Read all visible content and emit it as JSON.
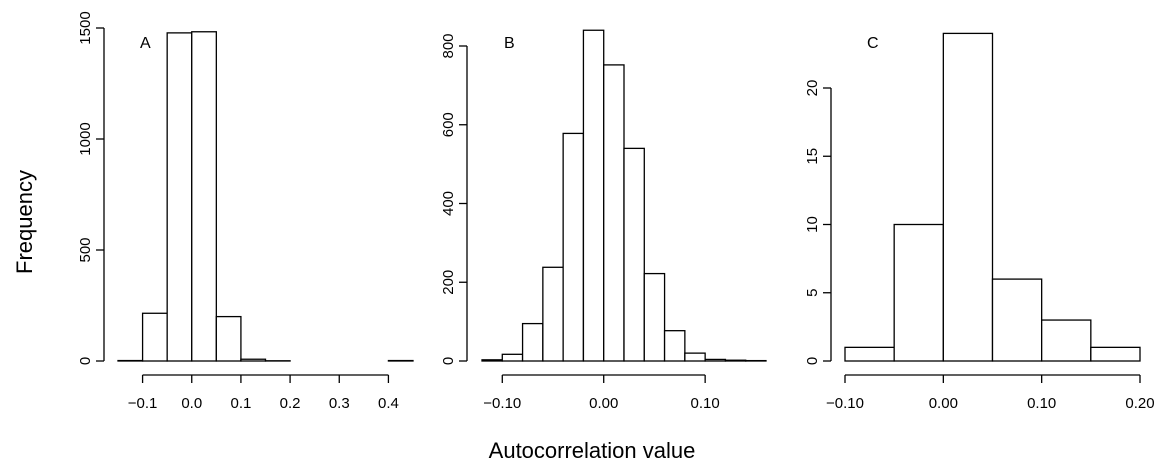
{
  "ylabel": "Frequency",
  "xlabel": "Autocorrelation value",
  "chart_data": [
    {
      "type": "bar",
      "panel": "A",
      "bin_edges": [
        -0.15,
        -0.1,
        -0.05,
        0.0,
        0.05,
        0.1,
        0.15,
        0.2,
        0.25,
        0.3,
        0.35,
        0.4,
        0.45
      ],
      "values": [
        2,
        215,
        1478,
        1483,
        200,
        8,
        1,
        0,
        0,
        0,
        0,
        2
      ],
      "xlim": [
        -0.15,
        0.45
      ],
      "ylim": [
        0,
        1500
      ],
      "xticks": [
        -0.1,
        0.0,
        0.1,
        0.2,
        0.3,
        0.4
      ],
      "xtick_labels": [
        "−0.1",
        "0.0",
        "0.1",
        "0.2",
        "0.3",
        "0.4"
      ],
      "yticks": [
        0,
        500,
        1000,
        1500
      ],
      "ytick_labels": [
        "0",
        "500",
        "1000",
        "1500"
      ]
    },
    {
      "type": "bar",
      "panel": "B",
      "bin_edges": [
        -0.12,
        -0.1,
        -0.08,
        -0.06,
        -0.04,
        -0.02,
        0.0,
        0.02,
        0.04,
        0.06,
        0.08,
        0.1,
        0.12,
        0.14,
        0.16
      ],
      "values": [
        3,
        17,
        95,
        238,
        578,
        840,
        752,
        540,
        222,
        77,
        20,
        4,
        2,
        1
      ],
      "xlim": [
        -0.12,
        0.16
      ],
      "ylim": [
        0,
        800
      ],
      "xticks": [
        -0.1,
        0.0,
        0.1
      ],
      "xtick_labels": [
        "−0.10",
        "0.00",
        "0.10"
      ],
      "yticks": [
        0,
        200,
        400,
        600,
        800
      ],
      "ytick_labels": [
        "0",
        "200",
        "400",
        "600",
        "800"
      ]
    },
    {
      "type": "bar",
      "panel": "C",
      "bin_edges": [
        -0.1,
        -0.05,
        0.0,
        0.05,
        0.1,
        0.15,
        0.2
      ],
      "values": [
        1,
        10,
        24,
        6,
        3,
        1
      ],
      "xlim": [
        -0.1,
        0.2
      ],
      "ylim": [
        0,
        20
      ],
      "xticks": [
        -0.1,
        0.0,
        0.1,
        0.2
      ],
      "xtick_labels": [
        "−0.10",
        "0.00",
        "0.10",
        "0.20"
      ],
      "yticks": [
        0,
        5,
        10,
        15,
        20
      ],
      "ytick_labels": [
        "0",
        "5",
        "10",
        "15",
        "20"
      ]
    }
  ]
}
